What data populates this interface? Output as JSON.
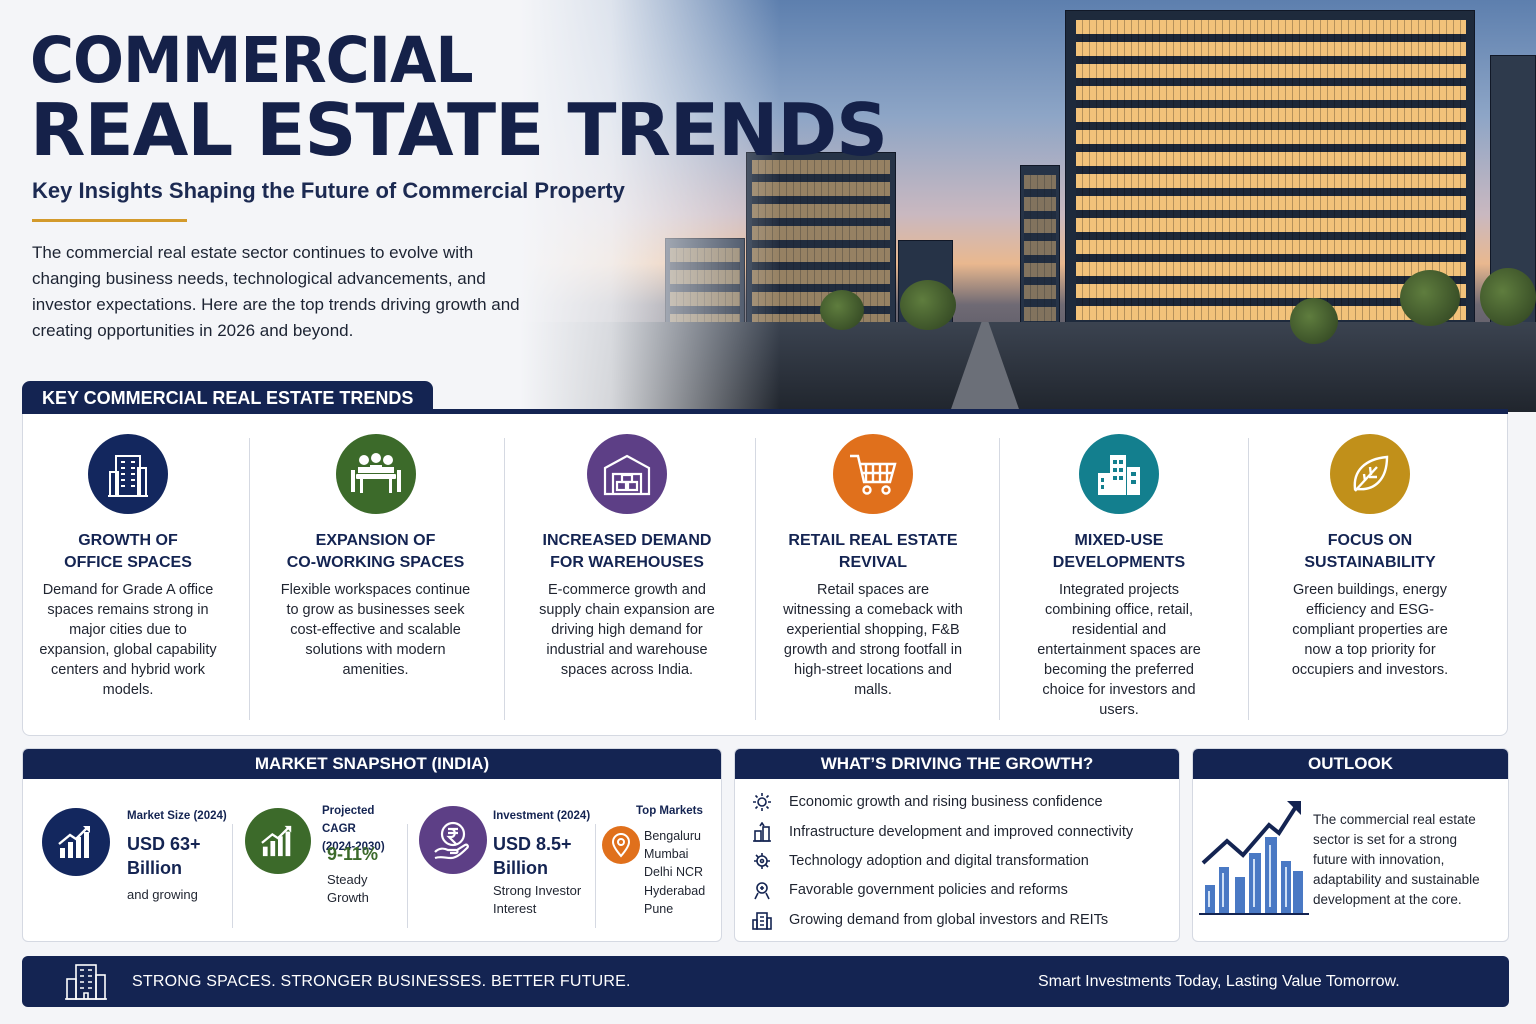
{
  "header": {
    "title_line1": "COMMERCIAL",
    "title_line2": "REAL ESTATE TRENDS",
    "subtitle": "Key Insights Shaping the Future of Commercial Property",
    "intro": "The commercial real estate sector continues to evolve with changing business needs, technological advancements, and investor expectations. Here are the top trends driving growth and creating opportunities in 2026 and beyond."
  },
  "trends": {
    "section_title": "KEY COMMERCIAL REAL ESTATE TRENDS",
    "items": [
      {
        "title": "GROWTH OF\nOFFICE SPACES",
        "desc": "Demand for Grade A office spaces remains strong in major cities due to expansion, global capability centers and hybrid work models.",
        "icon": "office-building-icon",
        "color": "#13275e"
      },
      {
        "title": "EXPANSION OF\nCO-WORKING SPACES",
        "desc": "Flexible workspaces continue to grow as businesses seek cost-effective and scalable solutions with modern amenities.",
        "icon": "coworking-people-icon",
        "color": "#3c6a2a"
      },
      {
        "title": "INCREASED DEMAND\nFOR WAREHOUSES",
        "desc": "E-commerce growth and supply chain expansion are driving high demand for industrial and warehouse spaces across India.",
        "icon": "warehouse-icon",
        "color": "#5d3f86"
      },
      {
        "title": "RETAIL REAL ESTATE\nREVIVAL",
        "desc": "Retail spaces are witnessing a comeback with experiential shopping, F&B growth and strong footfall in high-street locations and malls.",
        "icon": "shopping-cart-icon",
        "color": "#e0701c"
      },
      {
        "title": "MIXED-USE\nDEVELOPMENTS",
        "desc": "Integrated projects combining office, retail, residential and entertainment spaces are becoming the preferred choice for investors and users.",
        "icon": "city-buildings-icon",
        "color": "#137f8e"
      },
      {
        "title": "FOCUS ON\nSUSTAINABILITY",
        "desc": "Green buildings, energy efficiency and ESG-compliant properties are now a top priority for occupiers and investors.",
        "icon": "leaf-icon",
        "color": "#c1901a"
      }
    ]
  },
  "snapshot": {
    "title": "MARKET SNAPSHOT (INDIA)",
    "market_size": {
      "label": "Market Size (2024)",
      "value": "USD 63+ Billion",
      "note": "and growing"
    },
    "cagr": {
      "label": "Projected CAGR (2024-2030)",
      "value": "9-11%",
      "note": "Steady Growth"
    },
    "investment": {
      "label": "Investment (2024)",
      "value": "USD 8.5+ Billion",
      "note": "Strong Investor Interest"
    },
    "top_markets": {
      "label": "Top Markets",
      "cities": [
        "Bengaluru",
        "Mumbai",
        "Delhi NCR",
        "Hyderabad",
        "Pune"
      ]
    },
    "colors": {
      "navy": "#13275e",
      "green": "#3c6a2a",
      "purple": "#5d3f86",
      "orange": "#e0701c"
    }
  },
  "drivers": {
    "title": "WHAT’S DRIVING THE GROWTH?",
    "items": [
      {
        "text": "Economic growth and rising business confidence",
        "icon": "growth-gear-icon"
      },
      {
        "text": "Infrastructure development and improved connectivity",
        "icon": "infrastructure-icon"
      },
      {
        "text": "Technology adoption and digital transformation",
        "icon": "technology-gear-icon"
      },
      {
        "text": "Favorable government policies and reforms",
        "icon": "policy-icon"
      },
      {
        "text": "Growing demand from global investors and REITs",
        "icon": "investor-building-icon"
      }
    ]
  },
  "outlook": {
    "title": "OUTLOOK",
    "text": "The commercial real estate sector is set for a strong future with innovation, adaptability and sustainable development at the core."
  },
  "footer": {
    "left": "STRONG SPACES. STRONGER BUSINESSES. BETTER FUTURE.",
    "right": "Smart Investments Today, Lasting Value Tomorrow."
  }
}
